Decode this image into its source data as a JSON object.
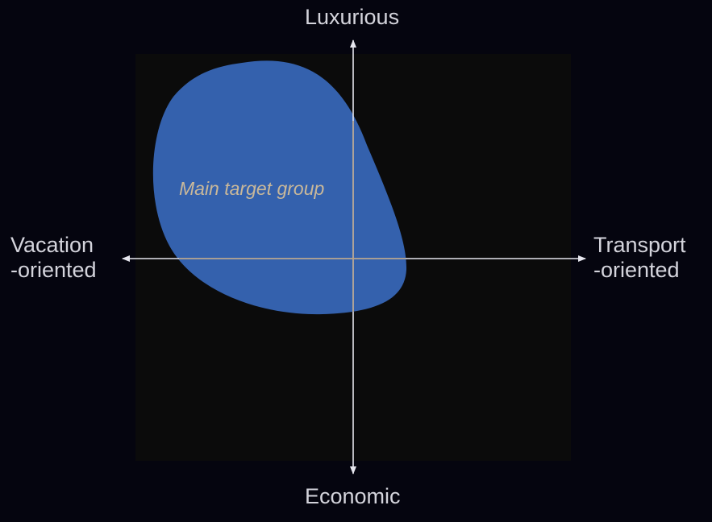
{
  "axes": {
    "vertical_top": "Luxurious",
    "vertical_bottom": "Economic",
    "horizontal_left_line1": "Vacation",
    "horizontal_left_line2": "-oriented",
    "horizontal_right_line1": "Transport",
    "horizontal_right_line2": "-oriented"
  },
  "region": {
    "label": "Main target group",
    "fill_color": "#3461ad"
  },
  "colors": {
    "background": "#05050f",
    "panel": "#0b0b0b",
    "axis_line": "#e6e6ee",
    "axis_crosshair": "#b89a72",
    "label_text": "#d4d4dc",
    "region_text": "#c9b89a"
  }
}
